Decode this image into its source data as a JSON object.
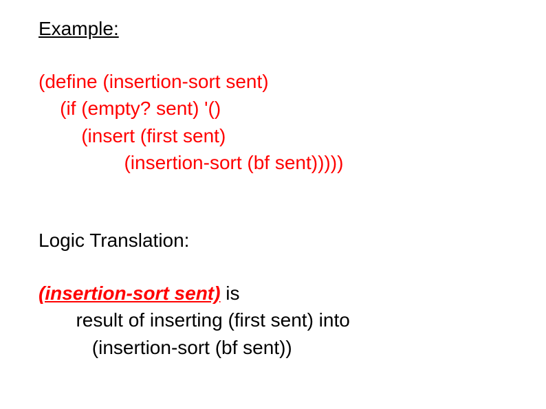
{
  "header": {
    "text": "Example:"
  },
  "code": {
    "l1": "(define (insertion-sort sent)",
    "l2": "    (if (empty? sent) '()",
    "l3": "        (insert (first sent)",
    "l4": "                (insertion-sort (bf sent)))))",
    "color": "#ff0000",
    "fontsize": 28
  },
  "logic_header": {
    "text": "Logic Translation:"
  },
  "translation": {
    "emph": "(insertion-sort sent)",
    "rest1": " is",
    "l2": "       result of inserting (first sent) into",
    "l3": "          (insertion-sort (bf sent))",
    "color_emph": "#ff0000",
    "color_rest": "#000000"
  },
  "styling": {
    "background": "#ffffff",
    "font_family": "Arial",
    "base_fontsize": 28
  }
}
